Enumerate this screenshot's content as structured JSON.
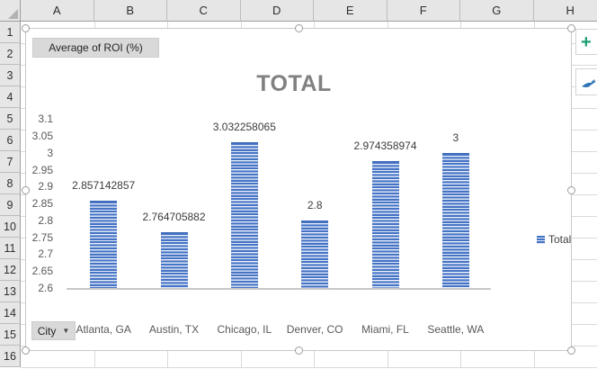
{
  "sheet": {
    "column_headers": [
      "A",
      "B",
      "C",
      "D",
      "E",
      "F",
      "G",
      "H"
    ],
    "row_headers": [
      "1",
      "2",
      "3",
      "4",
      "5",
      "6",
      "7",
      "8",
      "9",
      "10",
      "11",
      "12",
      "13",
      "14",
      "15",
      "16"
    ]
  },
  "pivot_fields": {
    "value_button_label": "Average of ROI (%)",
    "axis_button_label": "City"
  },
  "chart_tools": {
    "elements_button_glyph": "+",
    "styles_button_icon": "paintbrush-icon"
  },
  "icons": {
    "select_all": "select-all-triangle",
    "city_dropdown": "chevron-down-arrow"
  },
  "colors": {
    "bar_accent": "#4472C4",
    "title_gray": "#808080",
    "axis_text": "#595959",
    "header_bg": "#E6E6E6"
  },
  "chart_data": {
    "type": "bar",
    "title": "TOTAL",
    "categories": [
      "Atlanta, GA",
      "Austin, TX",
      "Chicago, IL",
      "Denver, CO",
      "Miami, FL",
      "Seattle, WA"
    ],
    "values": [
      2.857142857,
      2.764705882,
      3.032258065,
      2.8,
      2.974358974,
      3
    ],
    "data_labels": [
      "2.857142857",
      "2.764705882",
      "3.032258065",
      "2.8",
      "2.974358974",
      "3"
    ],
    "series_name": "Total",
    "legend": [
      "Total"
    ],
    "legend_position": "right",
    "ylim": [
      2.6,
      3.1
    ],
    "ytick_step": 0.05,
    "yticks": [
      "3.1",
      "3.05",
      "3",
      "2.95",
      "2.9",
      "2.85",
      "2.8",
      "2.75",
      "2.7",
      "2.65",
      "2.6"
    ],
    "grid": false,
    "xlabel": "",
    "ylabel": ""
  }
}
